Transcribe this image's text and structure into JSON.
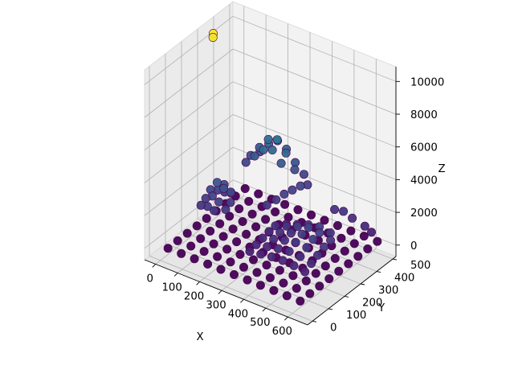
{
  "chart_data": {
    "type": "scatter3d",
    "title": "",
    "xlabel": "X",
    "ylabel": "Y",
    "zlabel": "Z",
    "xlim": [
      -50,
      690
    ],
    "ylim": [
      -30,
      520
    ],
    "zlim": [
      -700,
      10900
    ],
    "x_ticks": [
      "0",
      "100",
      "200",
      "300",
      "400",
      "500",
      "600"
    ],
    "y_ticks": [
      "0",
      "100",
      "200",
      "300",
      "400",
      "500"
    ],
    "z_ticks": [
      "0",
      "2000",
      "4000",
      "6000",
      "8000",
      "10000"
    ],
    "x_tick_values": [
      0,
      100,
      200,
      300,
      400,
      500,
      600
    ],
    "y_tick_values": [
      0,
      100,
      200,
      300,
      400,
      500
    ],
    "z_tick_values": [
      0,
      2000,
      4000,
      6000,
      8000,
      10000
    ],
    "colormap": "viridis",
    "color_by": "z",
    "grid": true,
    "pane_color": "#f2f2f2",
    "grid_color": "#b0b0b0",
    "marker_edge_color": "#4b0055",
    "series": [
      {
        "region": "base",
        "points": [
          [
            20,
            20,
            0
          ],
          [
            80,
            20,
            0
          ],
          [
            140,
            20,
            0
          ],
          [
            200,
            20,
            0
          ],
          [
            260,
            20,
            0
          ],
          [
            320,
            20,
            0
          ],
          [
            380,
            20,
            0
          ],
          [
            440,
            20,
            0
          ],
          [
            500,
            20,
            0
          ],
          [
            560,
            20,
            0
          ],
          [
            620,
            20,
            0
          ],
          [
            20,
            80,
            0
          ],
          [
            80,
            80,
            0
          ],
          [
            140,
            80,
            0
          ],
          [
            200,
            80,
            0
          ],
          [
            260,
            80,
            0
          ],
          [
            320,
            80,
            0
          ],
          [
            380,
            80,
            0
          ],
          [
            440,
            80,
            0
          ],
          [
            500,
            80,
            0
          ],
          [
            560,
            80,
            0
          ],
          [
            620,
            80,
            0
          ],
          [
            20,
            140,
            0
          ],
          [
            80,
            140,
            0
          ],
          [
            140,
            140,
            0
          ],
          [
            200,
            140,
            0
          ],
          [
            260,
            140,
            0
          ],
          [
            320,
            140,
            0
          ],
          [
            380,
            140,
            0
          ],
          [
            440,
            140,
            0
          ],
          [
            500,
            140,
            0
          ],
          [
            560,
            140,
            0
          ],
          [
            620,
            140,
            0
          ],
          [
            20,
            200,
            0
          ],
          [
            80,
            200,
            0
          ],
          [
            140,
            200,
            0
          ],
          [
            200,
            200,
            0
          ],
          [
            260,
            200,
            0
          ],
          [
            320,
            200,
            0
          ],
          [
            380,
            200,
            0
          ],
          [
            440,
            200,
            0
          ],
          [
            500,
            200,
            0
          ],
          [
            560,
            200,
            0
          ],
          [
            620,
            200,
            0
          ],
          [
            20,
            260,
            0
          ],
          [
            80,
            260,
            0
          ],
          [
            140,
            260,
            0
          ],
          [
            200,
            260,
            0
          ],
          [
            260,
            260,
            0
          ],
          [
            320,
            260,
            0
          ],
          [
            380,
            260,
            0
          ],
          [
            440,
            260,
            0
          ],
          [
            500,
            260,
            0
          ],
          [
            560,
            260,
            0
          ],
          [
            620,
            260,
            0
          ],
          [
            20,
            320,
            0
          ],
          [
            80,
            320,
            0
          ],
          [
            140,
            320,
            0
          ],
          [
            200,
            320,
            0
          ],
          [
            260,
            320,
            0
          ],
          [
            320,
            320,
            0
          ],
          [
            380,
            320,
            0
          ],
          [
            440,
            320,
            0
          ],
          [
            500,
            320,
            0
          ],
          [
            560,
            320,
            0
          ],
          [
            620,
            320,
            0
          ],
          [
            20,
            380,
            0
          ],
          [
            80,
            380,
            0
          ],
          [
            140,
            380,
            0
          ],
          [
            200,
            380,
            0
          ],
          [
            260,
            380,
            0
          ],
          [
            320,
            380,
            0
          ],
          [
            380,
            380,
            0
          ],
          [
            440,
            380,
            0
          ],
          [
            500,
            380,
            0
          ],
          [
            560,
            380,
            0
          ],
          [
            620,
            380,
            0
          ],
          [
            20,
            440,
            0
          ],
          [
            80,
            440,
            0
          ],
          [
            140,
            440,
            0
          ],
          [
            200,
            440,
            0
          ],
          [
            260,
            440,
            0
          ],
          [
            320,
            440,
            0
          ],
          [
            380,
            440,
            0
          ],
          [
            440,
            440,
            0
          ],
          [
            500,
            440,
            0
          ],
          [
            560,
            440,
            0
          ],
          [
            620,
            440,
            0
          ],
          [
            20,
            500,
            0
          ],
          [
            80,
            500,
            0
          ],
          [
            140,
            500,
            0
          ],
          [
            200,
            500,
            0
          ],
          [
            260,
            500,
            0
          ],
          [
            320,
            500,
            0
          ],
          [
            380,
            500,
            0
          ],
          [
            440,
            500,
            0
          ],
          [
            500,
            500,
            0
          ],
          [
            560,
            500,
            0
          ],
          [
            620,
            500,
            0
          ]
        ]
      },
      {
        "region": "low mound (x~50-150, y~150-300)",
        "points": [
          [
            60,
            170,
            1700
          ],
          [
            90,
            170,
            1800
          ],
          [
            120,
            170,
            1700
          ],
          [
            60,
            200,
            1900
          ],
          [
            90,
            200,
            2200
          ],
          [
            120,
            200,
            2000
          ],
          [
            150,
            200,
            1700
          ],
          [
            60,
            230,
            2200
          ],
          [
            90,
            230,
            2800
          ],
          [
            120,
            230,
            2600
          ],
          [
            150,
            230,
            1900
          ],
          [
            70,
            260,
            2000
          ],
          [
            100,
            260,
            2500
          ],
          [
            130,
            260,
            2200
          ],
          [
            80,
            290,
            1700
          ],
          [
            110,
            290,
            1800
          ]
        ]
      },
      {
        "region": "high mound (x~50-300, y~430-520)",
        "points": [
          [
            60,
            450,
            2200
          ],
          [
            100,
            450,
            2800
          ],
          [
            140,
            450,
            3400
          ],
          [
            180,
            450,
            3600
          ],
          [
            220,
            450,
            3000
          ],
          [
            60,
            480,
            2400
          ],
          [
            100,
            480,
            3100
          ],
          [
            140,
            480,
            3800
          ],
          [
            180,
            480,
            4000
          ],
          [
            220,
            480,
            3400
          ],
          [
            260,
            480,
            2600
          ],
          [
            80,
            510,
            2500
          ],
          [
            120,
            510,
            3200
          ],
          [
            160,
            510,
            3600
          ],
          [
            200,
            510,
            3300
          ],
          [
            240,
            510,
            2700
          ],
          [
            280,
            510,
            2200
          ]
        ]
      },
      {
        "region": "ridge (x~250-330, y~310-480)",
        "points": [
          [
            250,
            320,
            1600
          ],
          [
            270,
            350,
            1800
          ],
          [
            285,
            380,
            2000
          ],
          [
            300,
            410,
            2100
          ],
          [
            315,
            440,
            2200
          ],
          [
            325,
            470,
            2100
          ]
        ]
      },
      {
        "region": "large plateau (x~330-600, y~80-320)",
        "points": [
          [
            340,
            90,
            1000
          ],
          [
            390,
            90,
            1100
          ],
          [
            440,
            90,
            1200
          ],
          [
            490,
            90,
            1250
          ],
          [
            540,
            90,
            1200
          ],
          [
            590,
            90,
            1100
          ],
          [
            340,
            130,
            1100
          ],
          [
            390,
            130,
            1250
          ],
          [
            440,
            130,
            1400
          ],
          [
            490,
            130,
            1500
          ],
          [
            540,
            130,
            1450
          ],
          [
            590,
            130,
            1300
          ],
          [
            340,
            170,
            1200
          ],
          [
            390,
            170,
            1400
          ],
          [
            440,
            170,
            1600
          ],
          [
            490,
            170,
            1750
          ],
          [
            540,
            170,
            1700
          ],
          [
            590,
            170,
            1500
          ],
          [
            340,
            210,
            1300
          ],
          [
            390,
            210,
            1500
          ],
          [
            440,
            210,
            1750
          ],
          [
            490,
            210,
            1950
          ],
          [
            540,
            210,
            1900
          ],
          [
            590,
            210,
            1700
          ],
          [
            340,
            250,
            1350
          ],
          [
            390,
            250,
            1600
          ],
          [
            440,
            250,
            1850
          ],
          [
            490,
            250,
            2050
          ],
          [
            540,
            250,
            2000
          ],
          [
            590,
            250,
            1800
          ],
          [
            360,
            290,
            1250
          ],
          [
            410,
            290,
            1500
          ],
          [
            460,
            290,
            1750
          ],
          [
            510,
            290,
            1900
          ],
          [
            560,
            290,
            1800
          ]
        ]
      },
      {
        "region": "small mounds near y axis",
        "points": [
          [
            470,
            440,
            1600
          ],
          [
            510,
            440,
            1700
          ],
          [
            550,
            440,
            1500
          ],
          [
            600,
            450,
            1200
          ],
          [
            630,
            450,
            1000
          ]
        ]
      },
      {
        "region": "outlier",
        "points": [
          [
            -30,
            370,
            10200
          ],
          [
            -28,
            366,
            10000
          ]
        ]
      }
    ]
  }
}
